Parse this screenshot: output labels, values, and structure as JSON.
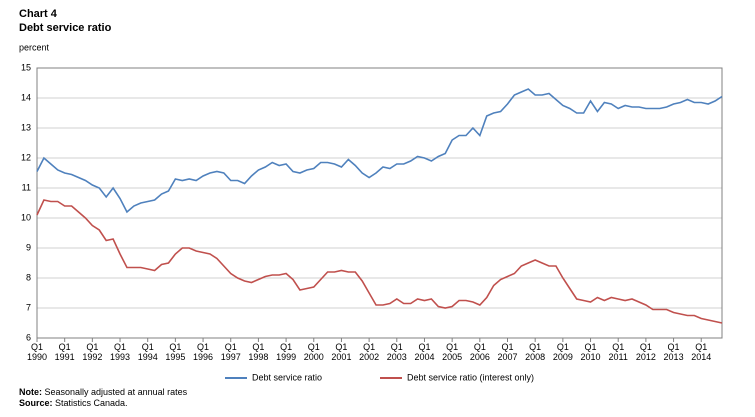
{
  "chart_data": {
    "type": "line",
    "title": "Chart 4",
    "subtitle": "Debt service ratio",
    "y_label": "percent",
    "categories": [
      "Q1 1990",
      null,
      null,
      null,
      "Q1 1991",
      null,
      null,
      null,
      "Q1 1992",
      null,
      null,
      null,
      "Q1 1993",
      null,
      null,
      null,
      "Q1 1994",
      null,
      null,
      null,
      "Q1 1995",
      null,
      null,
      null,
      "Q1 1996",
      null,
      null,
      null,
      "Q1 1997",
      null,
      null,
      null,
      "Q1 1998",
      null,
      null,
      null,
      "Q1 1999",
      null,
      null,
      null,
      "Q1 2000",
      null,
      null,
      null,
      "Q1 2001",
      null,
      null,
      null,
      "Q1 2002",
      null,
      null,
      null,
      "Q1 2003",
      null,
      null,
      null,
      "Q1 2004",
      null,
      null,
      null,
      "Q1 2005",
      null,
      null,
      null,
      "Q1 2006",
      null,
      null,
      null,
      "Q1 2007",
      null,
      null,
      null,
      "Q1 2008",
      null,
      null,
      null,
      "Q1 2009",
      null,
      null,
      null,
      "Q1 2010",
      null,
      null,
      null,
      "Q1 2011",
      null,
      null,
      null,
      "Q1 2012",
      null,
      null,
      null,
      "Q1 2013",
      null,
      null,
      null,
      "Q1 2014",
      null,
      null,
      null
    ],
    "series": [
      {
        "name": "Debt service ratio",
        "color": "#4f81bd",
        "values": [
          11.55,
          12.0,
          11.8,
          11.6,
          11.5,
          11.45,
          11.35,
          11.25,
          11.1,
          11.0,
          10.7,
          11.0,
          10.65,
          10.2,
          10.4,
          10.5,
          10.55,
          10.6,
          10.8,
          10.9,
          11.3,
          11.25,
          11.3,
          11.25,
          11.4,
          11.5,
          11.55,
          11.5,
          11.25,
          11.25,
          11.15,
          11.4,
          11.6,
          11.7,
          11.85,
          11.75,
          11.8,
          11.55,
          11.5,
          11.6,
          11.65,
          11.85,
          11.85,
          11.8,
          11.7,
          11.95,
          11.75,
          11.5,
          11.35,
          11.5,
          11.7,
          11.65,
          11.8,
          11.8,
          11.9,
          12.05,
          12.0,
          11.9,
          12.05,
          12.15,
          12.6,
          12.75,
          12.75,
          13.0,
          12.75,
          13.4,
          13.5,
          13.55,
          13.8,
          14.1,
          14.2,
          14.3,
          14.1,
          14.1,
          14.15,
          13.95,
          13.75,
          13.65,
          13.5,
          13.5,
          13.9,
          13.55,
          13.85,
          13.8,
          13.65,
          13.75,
          13.7,
          13.7,
          13.65,
          13.65,
          13.65,
          13.7,
          13.8,
          13.85,
          13.95,
          13.85,
          13.85,
          13.8,
          13.9,
          14.05
        ]
      },
      {
        "name": "Debt service ratio (interest only)",
        "color": "#c0504d",
        "values": [
          10.1,
          10.6,
          10.55,
          10.55,
          10.4,
          10.4,
          10.2,
          10.0,
          9.75,
          9.6,
          9.25,
          9.3,
          8.8,
          8.35,
          8.35,
          8.35,
          8.3,
          8.25,
          8.45,
          8.5,
          8.8,
          9.0,
          9.0,
          8.9,
          8.85,
          8.8,
          8.65,
          8.4,
          8.15,
          8.0,
          7.9,
          7.85,
          7.95,
          8.05,
          8.1,
          8.1,
          8.15,
          7.95,
          7.6,
          7.65,
          7.7,
          7.95,
          8.2,
          8.2,
          8.25,
          8.2,
          8.2,
          7.9,
          7.5,
          7.1,
          7.1,
          7.15,
          7.3,
          7.15,
          7.15,
          7.3,
          7.25,
          7.3,
          7.05,
          7.0,
          7.05,
          7.25,
          7.25,
          7.2,
          7.1,
          7.35,
          7.75,
          7.95,
          8.05,
          8.15,
          8.4,
          8.5,
          8.6,
          8.5,
          8.4,
          8.4,
          8.0,
          7.65,
          7.3,
          7.25,
          7.2,
          7.35,
          7.25,
          7.35,
          7.3,
          7.25,
          7.3,
          7.2,
          7.1,
          6.95,
          6.95,
          6.95,
          6.85,
          6.8,
          6.75,
          6.75,
          6.65,
          6.6,
          6.55,
          6.5
        ]
      }
    ],
    "ylim": [
      6,
      15
    ],
    "yticks": [
      6,
      7,
      8,
      9,
      10,
      11,
      12,
      13,
      14,
      15
    ],
    "grid": true,
    "legend": "bottom",
    "note": {
      "label": "Note:",
      "text": " Seasonally adjusted at annual rates"
    },
    "source": {
      "label": "Source:",
      "text": " Statistics Canada."
    }
  }
}
